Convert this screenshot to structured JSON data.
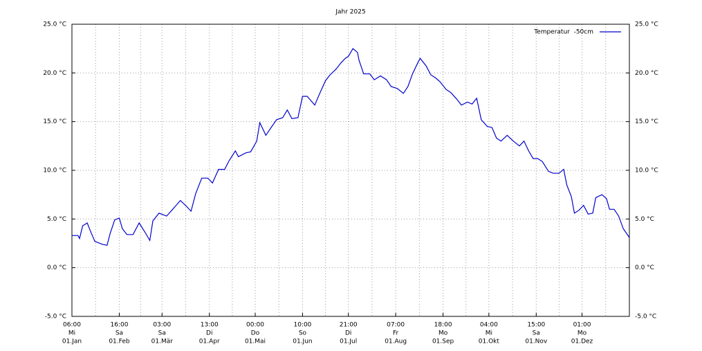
{
  "chart_data": {
    "type": "line",
    "title": "Jahr 2025",
    "x": [
      0,
      4,
      5,
      7,
      10,
      12,
      15,
      20,
      23,
      25,
      28,
      31,
      33,
      36,
      40,
      44,
      48,
      51,
      53,
      57,
      62,
      66,
      71,
      75,
      78,
      81,
      85,
      89,
      92,
      96,
      100,
      103,
      107,
      109,
      114,
      117,
      121,
      123,
      127,
      130,
      134,
      138,
      141,
      144,
      148,
      151,
      154,
      159,
      162,
      166,
      169,
      173,
      176,
      179,
      181,
      184,
      187,
      188,
      191,
      195,
      198,
      202,
      206,
      209,
      213,
      217,
      220,
      223,
      226,
      228,
      232,
      235,
      238,
      241,
      245,
      248,
      252,
      255,
      259,
      262,
      265,
      268,
      272,
      275,
      278,
      281,
      285,
      289,
      293,
      296,
      299,
      302,
      305,
      308,
      312,
      315,
      319,
      322,
      324,
      327,
      329,
      332,
      335,
      338,
      341,
      343,
      347,
      350,
      352,
      355,
      358,
      361,
      365
    ],
    "series": [
      {
        "name": "Temperatur  -50cm",
        "color": "#0000cc",
        "values": [
          3.3,
          3.3,
          3.0,
          4.3,
          4.6,
          3.8,
          2.7,
          2.4,
          2.3,
          3.5,
          4.9,
          5.1,
          4.0,
          3.4,
          3.4,
          4.6,
          3.6,
          2.8,
          4.8,
          5.6,
          5.3,
          6.0,
          6.9,
          6.3,
          5.8,
          7.6,
          9.2,
          9.2,
          8.7,
          10.1,
          10.1,
          11.0,
          12.0,
          11.4,
          11.8,
          11.9,
          13.0,
          14.9,
          13.6,
          14.3,
          15.2,
          15.4,
          16.2,
          15.3,
          15.4,
          17.6,
          17.6,
          16.7,
          17.8,
          19.2,
          19.8,
          20.4,
          21.0,
          21.5,
          21.7,
          22.5,
          22.1,
          21.3,
          19.9,
          19.9,
          19.3,
          19.7,
          19.3,
          18.6,
          18.4,
          17.9,
          18.6,
          19.9,
          20.9,
          21.5,
          20.7,
          19.8,
          19.5,
          19.1,
          18.3,
          18.0,
          17.3,
          16.7,
          17.0,
          16.8,
          17.4,
          15.2,
          14.5,
          14.4,
          13.3,
          13.0,
          13.6,
          13.0,
          12.5,
          13.0,
          12.0,
          11.2,
          11.2,
          10.9,
          9.9,
          9.7,
          9.7,
          10.1,
          8.5,
          7.3,
          5.6,
          5.9,
          6.4,
          5.5,
          5.6,
          7.2,
          7.5,
          7.1,
          6.0,
          6.0,
          5.3,
          4.0,
          3.1
        ]
      }
    ],
    "xlim": [
      0,
      365
    ],
    "xticks": [
      {
        "value": 0,
        "label": [
          "06:00",
          "Mi",
          "01.Jan"
        ]
      },
      {
        "value": 31,
        "label": [
          "16:00",
          "Sa",
          "01.Feb"
        ]
      },
      {
        "value": 59,
        "label": [
          "03:00",
          "Sa",
          "01.Mär"
        ]
      },
      {
        "value": 90,
        "label": [
          "13:00",
          "Di",
          "01.Apr"
        ]
      },
      {
        "value": 120,
        "label": [
          "00:00",
          "Do",
          "01.Mai"
        ]
      },
      {
        "value": 151,
        "label": [
          "10:00",
          "So",
          "01.Jun"
        ]
      },
      {
        "value": 181,
        "label": [
          "21:00",
          "Di",
          "01.Jul"
        ]
      },
      {
        "value": 212,
        "label": [
          "07:00",
          "Fr",
          "01.Aug"
        ]
      },
      {
        "value": 243,
        "label": [
          "18:00",
          "Mo",
          "01.Sep"
        ]
      },
      {
        "value": 273,
        "label": [
          "04:00",
          "Mi",
          "01.Okt"
        ]
      },
      {
        "value": 304,
        "label": [
          "15:00",
          "Sa",
          "01.Nov"
        ]
      },
      {
        "value": 334,
        "label": [
          "01:00",
          "Mo",
          "01.Dez"
        ]
      }
    ],
    "xminorticks": [
      15.5,
      45,
      74.5,
      105,
      135.5,
      166,
      196.5,
      227.5,
      258,
      288.5,
      319,
      349.5
    ],
    "ylim": [
      -5,
      25
    ],
    "yticks": [
      {
        "value": -5,
        "label": "-5.0 °C"
      },
      {
        "value": 0,
        "label": "0.0 °C"
      },
      {
        "value": 5,
        "label": "5.0 °C"
      },
      {
        "value": 10,
        "label": "10.0 °C"
      },
      {
        "value": 15,
        "label": "15.0 °C"
      },
      {
        "value": 20,
        "label": "20.0 °C"
      },
      {
        "value": 25,
        "label": "25.0 °C"
      }
    ],
    "grid": true,
    "legend": "top-right"
  }
}
